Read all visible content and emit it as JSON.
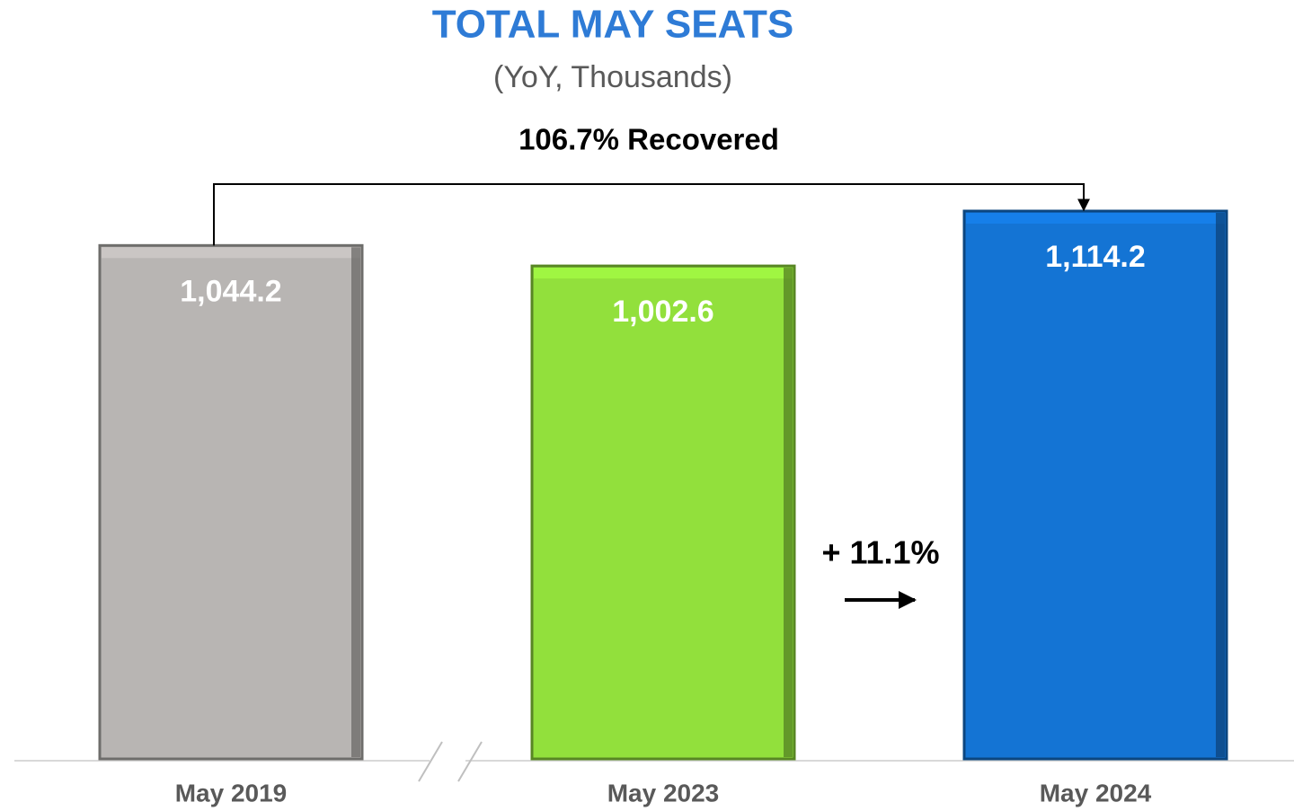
{
  "chart_data": {
    "type": "bar",
    "title": "TOTAL MAY SEATS",
    "subtitle": "(YoY, Thousands)",
    "annotations": [
      "106.7% Recovered",
      "+ 11.1%"
    ],
    "categories": [
      "May 2019",
      "May 2023",
      "May 2024"
    ],
    "values": [
      1044.2,
      1002.6,
      1114.2
    ],
    "value_labels": [
      "1,044.2",
      "1,002.6",
      "1,114.2"
    ],
    "colors": [
      "#b8b5b3",
      "#92e03c",
      "#1474d4"
    ]
  }
}
